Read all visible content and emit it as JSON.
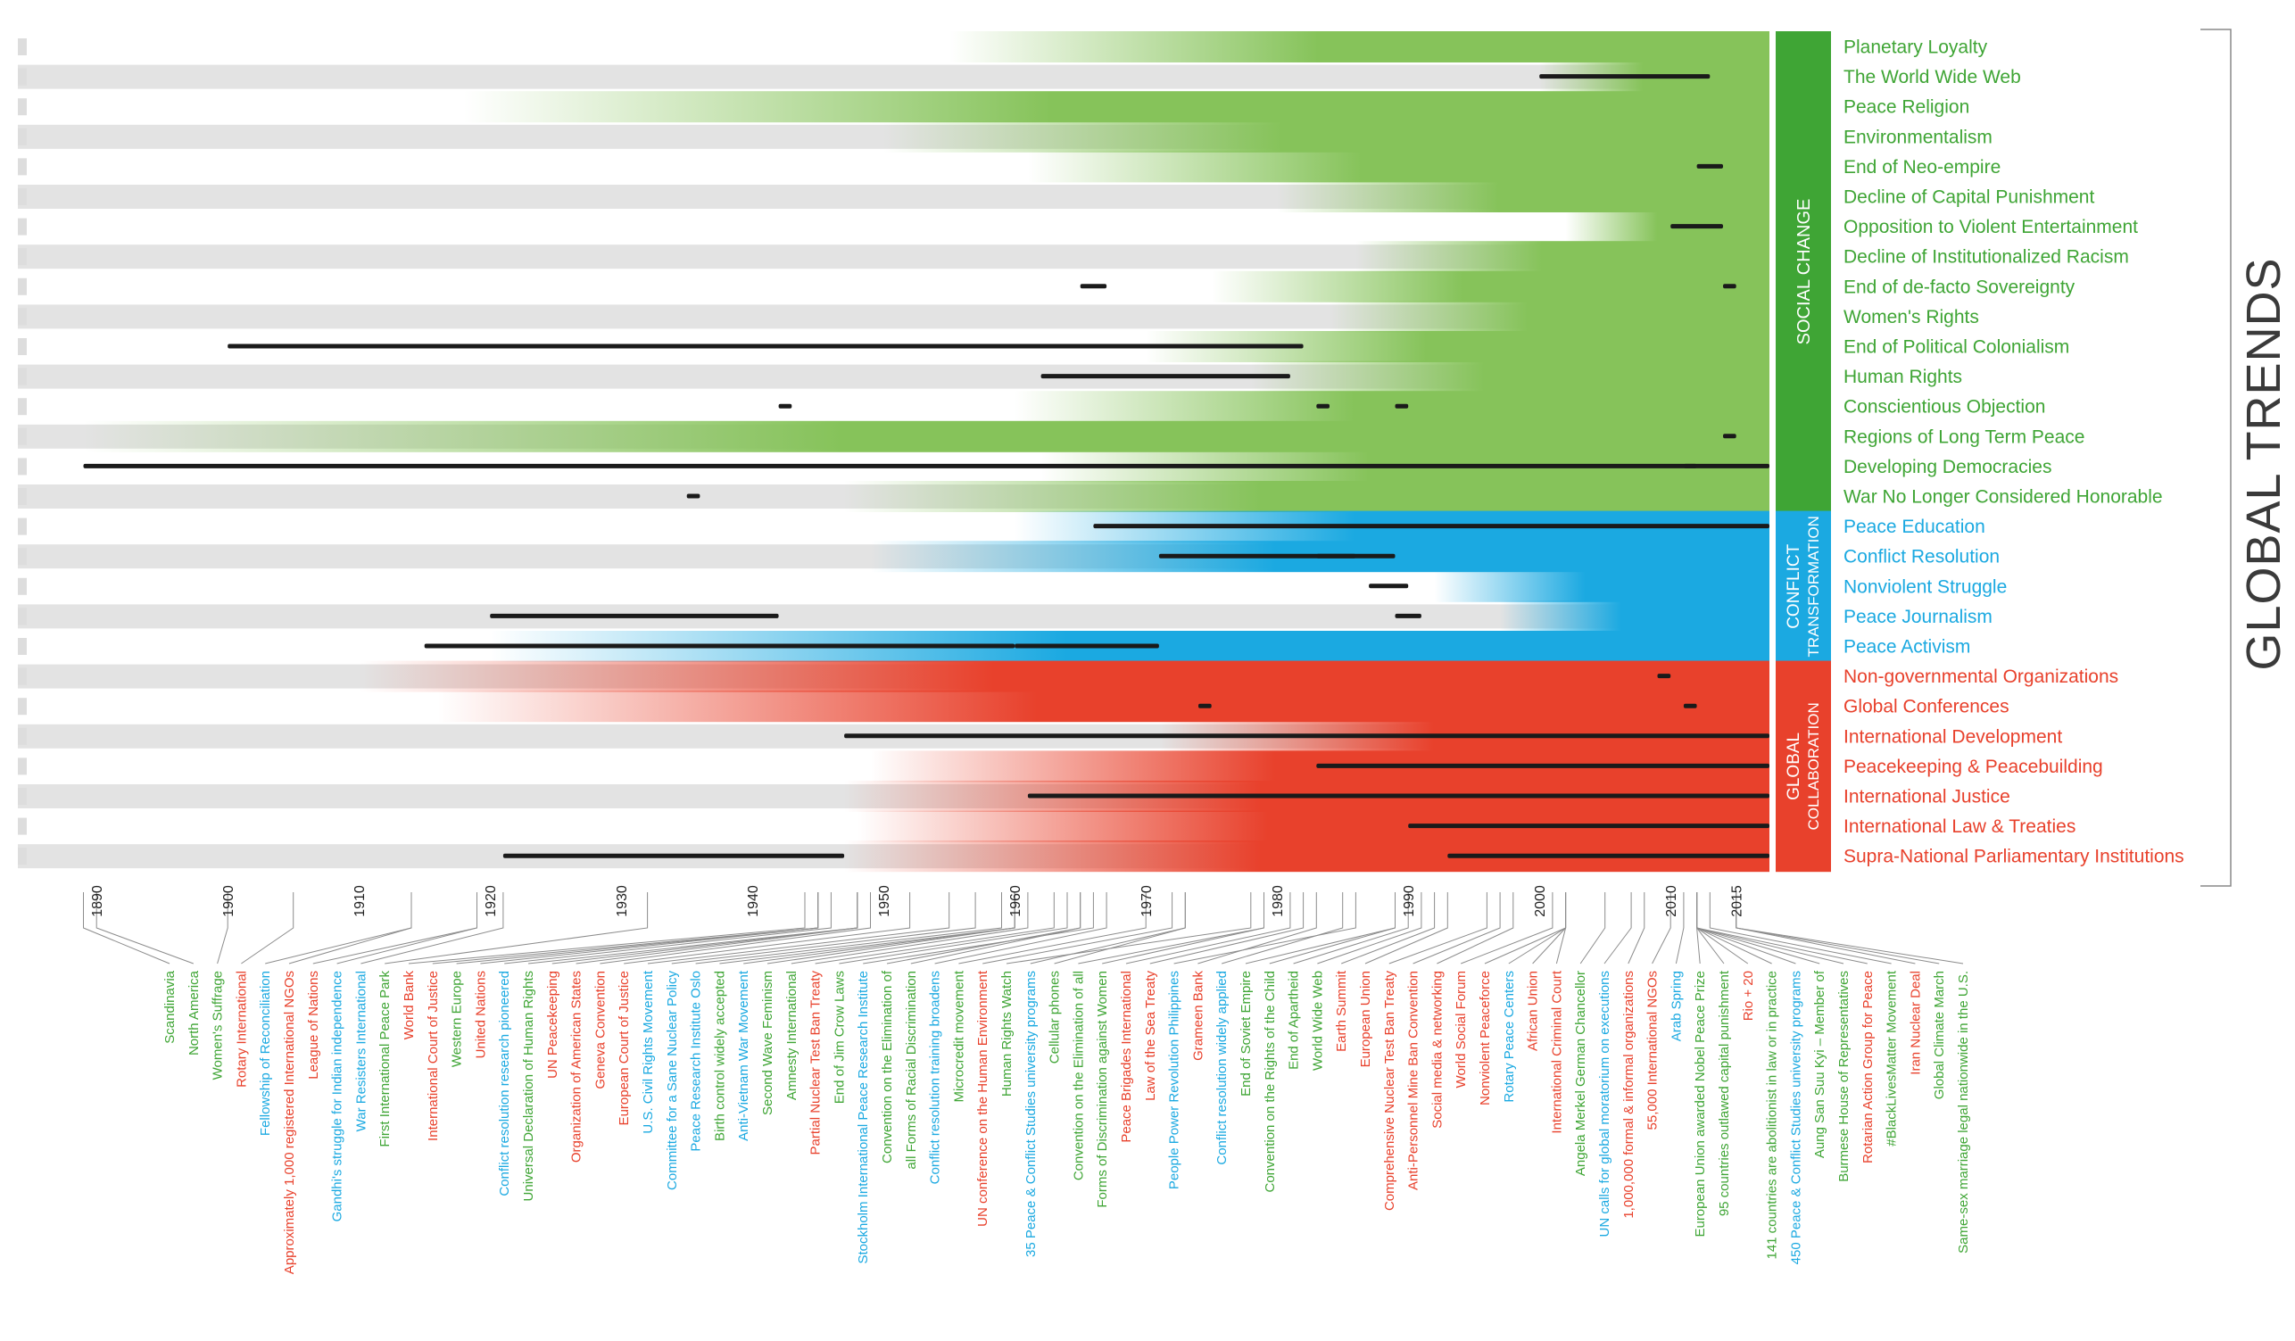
{
  "title": "GLOBAL TRENDS",
  "colors": {
    "social": "#3fa535",
    "social_light": "#86c35a",
    "conflict": "#1ba9e1",
    "global": "#e8412c",
    "band": "#e3e3e3",
    "black": "#1a1a1a",
    "connector": "#8c8c8c"
  },
  "chart_data": {
    "type": "timeline",
    "title": "GLOBAL TRENDS",
    "xlim": [
      1884,
      2020
    ],
    "ticks": [
      1890,
      1900,
      1910,
      1920,
      1930,
      1940,
      1950,
      1960,
      1970,
      1980,
      1990,
      2000,
      2010,
      2015
    ],
    "categories": [
      {
        "label": "SOCIAL CHANGE",
        "color": "#3fa535"
      },
      {
        "label": "CONFLICT",
        "label2": "TRANSFORMATION",
        "color": "#1ba9e1"
      },
      {
        "label": "GLOBAL",
        "label2": "COLLABORATION",
        "color": "#e8412c"
      }
    ],
    "trends": [
      {
        "label": "Planetary Loyalty",
        "category": 0,
        "start": 1955
      },
      {
        "label": "The World Wide Web",
        "category": 0,
        "start": 2000
      },
      {
        "label": "Peace Religion",
        "category": 0,
        "start": 1918
      },
      {
        "label": "Environmentalism",
        "category": 0,
        "start": 1950
      },
      {
        "label": "End of Neo-empire",
        "category": 0,
        "start": 1961
      },
      {
        "label": "Decline of Capital Punishment",
        "category": 0,
        "start": 1980
      },
      {
        "label": "Opposition to Violent Entertainment",
        "category": 0,
        "start": 2002
      },
      {
        "label": "Decline of Institutionalized Racism",
        "category": 0,
        "start": 1986
      },
      {
        "label": "End of de-facto Sovereignty",
        "category": 0,
        "start": 1975
      },
      {
        "label": "Women's Rights",
        "category": 0,
        "start": 1984
      },
      {
        "label": "End of Political Colonialism",
        "category": 0,
        "start": 1970
      },
      {
        "label": "Human Rights",
        "category": 0,
        "start": 1978
      },
      {
        "label": "Conscientious Objection",
        "category": 0,
        "start": 1960
      },
      {
        "label": "Regions of Long Term Peace",
        "category": 0,
        "start": 1889
      },
      {
        "label": "Developing Democracies",
        "category": 0,
        "start": 1962
      },
      {
        "label": "War No Longer Considered Honorable",
        "category": 0,
        "start": 1947
      },
      {
        "label": "Peace Education",
        "category": 1,
        "start": 1960
      },
      {
        "label": "Conflict Resolution",
        "category": 1,
        "start": 1949
      },
      {
        "label": "Nonviolent Struggle",
        "category": 1,
        "start": 1992
      },
      {
        "label": "Peace Journalism",
        "category": 1,
        "start": 1997
      },
      {
        "label": "Peace Activism",
        "category": 1,
        "start": 1920
      },
      {
        "label": "Non-governmental Organizations",
        "category": 2,
        "start": 1910
      },
      {
        "label": "Global Conferences",
        "category": 2,
        "start": 1916
      },
      {
        "label": "International Development",
        "category": 2,
        "start": 1971
      },
      {
        "label": "Peacekeeping & Peacebuilding",
        "category": 2,
        "start": 1949
      },
      {
        "label": "International Justice",
        "category": 2,
        "start": 1947
      },
      {
        "label": "International Law & Treaties",
        "category": 2,
        "start": 1948
      },
      {
        "label": "Supra-National Parliamentary Institutions",
        "category": 2,
        "start": 1947
      }
    ],
    "events": [
      {
        "label": "Scandinavia",
        "year": 1889,
        "cat": 0
      },
      {
        "label": "North America",
        "year": 1890,
        "cat": 0
      },
      {
        "label": "Women's Suffrage",
        "year": 1900,
        "cat": 0
      },
      {
        "label": "Rotary International",
        "year": 1905,
        "cat": 2
      },
      {
        "label": "Fellowship of Reconciliation",
        "year": 1914,
        "cat": 1
      },
      {
        "label": "Approximately 1,000 registered International NGOs",
        "year": 1914,
        "cat": 2
      },
      {
        "label": "League of Nations",
        "year": 1919,
        "cat": 2
      },
      {
        "label": "Gandhi's struggle for Indian independence",
        "year": 1919,
        "cat": 1
      },
      {
        "label": "War Resisters International",
        "year": 1921,
        "cat": 1
      },
      {
        "label": "First International Peace Park",
        "year": 1932,
        "cat": 0
      },
      {
        "label": "World Bank",
        "year": 1944,
        "cat": 2
      },
      {
        "label": "International Court of Justice",
        "year": 1945,
        "cat": 2
      },
      {
        "label": "Western Europe",
        "year": 1945,
        "cat": 0
      },
      {
        "label": "United Nations",
        "year": 1945,
        "cat": 2
      },
      {
        "label": "Conflict resolution research pioneered",
        "year": 1946,
        "cat": 1
      },
      {
        "label": "Universal Declaration of Human Rights",
        "year": 1948,
        "cat": 0
      },
      {
        "label": "UN Peacekeeping",
        "year": 1948,
        "cat": 2
      },
      {
        "label": "Organization of American States",
        "year": 1948,
        "cat": 2
      },
      {
        "label": "Geneva Convention",
        "year": 1949,
        "cat": 2
      },
      {
        "label": "European Court of Justice",
        "year": 1952,
        "cat": 2
      },
      {
        "label": "U.S. Civil Rights Movement",
        "year": 1955,
        "cat": 1
      },
      {
        "label": "Committee for a Sane Nuclear Policy",
        "year": 1957,
        "cat": 1
      },
      {
        "label": "Peace Research Institute Oslo",
        "year": 1959,
        "cat": 1
      },
      {
        "label": "Birth control widely accepted",
        "year": 1960,
        "cat": 0
      },
      {
        "label": "Anti-Vietnam War Movement",
        "year": 1960,
        "cat": 1
      },
      {
        "label": "Second Wave Feminism",
        "year": 1960,
        "cat": 0
      },
      {
        "label": "Amnesty International",
        "year": 1961,
        "cat": 0
      },
      {
        "label": "Partial Nuclear Test Ban Treaty",
        "year": 1963,
        "cat": 2
      },
      {
        "label": "End of Jim Crow Laws",
        "year": 1964,
        "cat": 0
      },
      {
        "label": "Stockholm International Peace Research Institute",
        "year": 1966,
        "cat": 1
      },
      {
        "label": "Convention on the Elimination of",
        "year": 1965,
        "cat": 0
      },
      {
        "label": "all Forms of Racial Discrimination",
        "year": 1965,
        "cat": 0
      },
      {
        "label": "Conflict resolution training broadens",
        "year": 1967,
        "cat": 1
      },
      {
        "label": "Microcredit movement",
        "year": 1970,
        "cat": 0
      },
      {
        "label": "UN conference on the Human Environment",
        "year": 1972,
        "cat": 2
      },
      {
        "label": "Human Rights Watch",
        "year": 1978,
        "cat": 0
      },
      {
        "label": "35 Peace & Conflict Studies university programs",
        "year": 1973,
        "cat": 1
      },
      {
        "label": "Cellular phones",
        "year": 1973,
        "cat": 0
      },
      {
        "label": "Convention on the Elimination of all",
        "year": 1979,
        "cat": 0
      },
      {
        "label": "Forms of Discrimination against Women",
        "year": 1979,
        "cat": 0
      },
      {
        "label": "Peace Brigades International",
        "year": 1981,
        "cat": 2
      },
      {
        "label": "Law of the Sea Treaty",
        "year": 1982,
        "cat": 2
      },
      {
        "label": "People Power Revolution Philippines",
        "year": 1986,
        "cat": 1
      },
      {
        "label": "Grameen Bank",
        "year": 1983,
        "cat": 2
      },
      {
        "label": "Conflict resolution widely applied",
        "year": 1985,
        "cat": 1
      },
      {
        "label": "End of Soviet Empire",
        "year": 1989,
        "cat": 0
      },
      {
        "label": "Convention on the Rights of the Child",
        "year": 1989,
        "cat": 0
      },
      {
        "label": "End of Apartheid",
        "year": 1990,
        "cat": 0
      },
      {
        "label": "World Wide Web",
        "year": 1991,
        "cat": 0
      },
      {
        "label": "Earth Summit",
        "year": 1992,
        "cat": 2
      },
      {
        "label": "European Union",
        "year": 1993,
        "cat": 2
      },
      {
        "label": "Comprehensive Nuclear Test Ban Treaty",
        "year": 1996,
        "cat": 2
      },
      {
        "label": "Anti-Personnel Mine Ban Convention",
        "year": 1997,
        "cat": 2
      },
      {
        "label": "Social media & networking",
        "year": 1998,
        "cat": 2
      },
      {
        "label": "World Social Forum",
        "year": 2001,
        "cat": 2
      },
      {
        "label": "Nonviolent Peaceforce",
        "year": 2002,
        "cat": 2
      },
      {
        "label": "Rotary Peace Centers",
        "year": 2002,
        "cat": 1
      },
      {
        "label": "African Union",
        "year": 2002,
        "cat": 2
      },
      {
        "label": "International Criminal Court",
        "year": 2002,
        "cat": 2
      },
      {
        "label": "Angela Merkel German Chancellor",
        "year": 2005,
        "cat": 0
      },
      {
        "label": "UN calls for global moratorium on executions",
        "year": 2007,
        "cat": 1
      },
      {
        "label": "1,000,000 formal & informal organizations",
        "year": 2008,
        "cat": 2
      },
      {
        "label": "55,000 International NGOs",
        "year": 2010,
        "cat": 2
      },
      {
        "label": "Arab Spring",
        "year": 2011,
        "cat": 1
      },
      {
        "label": "European Union awarded Nobel Peace Prize",
        "year": 2012,
        "cat": 0
      },
      {
        "label": "95 countries outlawed capital punishment",
        "year": 2012,
        "cat": 0
      },
      {
        "label": "Rio + 20",
        "year": 2012,
        "cat": 2
      },
      {
        "label": "141 countries are abolitionist in law or in practice",
        "year": 2012,
        "cat": 0
      },
      {
        "label": "450 Peace & Conflict Studies university programs",
        "year": 2012,
        "cat": 1
      },
      {
        "label": "Aung San Suu Kyi – Member of",
        "year": 2012,
        "cat": 0
      },
      {
        "label": "Burmese House of Representatives",
        "year": 2012,
        "cat": 0
      },
      {
        "label": "Rotarian Action Group for Peace",
        "year": 2012,
        "cat": 2
      },
      {
        "label": "#BlackLivesMatter Movement",
        "year": 2013,
        "cat": 0
      },
      {
        "label": "Iran Nuclear Deal",
        "year": 2015,
        "cat": 2
      },
      {
        "label": "Global Climate March",
        "year": 2015,
        "cat": 0
      },
      {
        "label": "Same-sex marriage legal nationwide in the U.S.",
        "year": 2015,
        "cat": 0
      }
    ],
    "black_segments": [
      [
        1,
        2000,
        2013
      ],
      [
        4,
        2012,
        2014
      ],
      [
        6,
        2010,
        2014
      ],
      [
        8,
        1965,
        1967
      ],
      [
        8,
        2014,
        2015
      ],
      [
        10,
        1900,
        1982
      ],
      [
        11,
        1962,
        1981
      ],
      [
        12,
        1942,
        1943
      ],
      [
        12,
        1983,
        1984
      ],
      [
        12,
        1989,
        1990
      ],
      [
        13,
        2014,
        2015
      ],
      [
        14,
        2011,
        2012
      ],
      [
        14,
        1889,
        2020
      ],
      [
        15,
        1935,
        1936
      ],
      [
        16,
        1966,
        2020
      ],
      [
        17,
        1971,
        1986
      ],
      [
        17,
        1983,
        1989
      ],
      [
        18,
        1987,
        1990
      ],
      [
        19,
        1920,
        1942
      ],
      [
        19,
        1989,
        1991
      ],
      [
        20,
        1960,
        1971
      ],
      [
        20,
        1915,
        1960
      ],
      [
        21,
        2009,
        2010
      ],
      [
        22,
        1974,
        1975
      ],
      [
        22,
        2011,
        2012
      ],
      [
        23,
        1947,
        2020
      ],
      [
        24,
        1983,
        2020
      ],
      [
        25,
        1961,
        2020
      ],
      [
        26,
        1990,
        2020
      ],
      [
        27,
        1921,
        1947
      ],
      [
        27,
        1993,
        2020
      ]
    ]
  }
}
